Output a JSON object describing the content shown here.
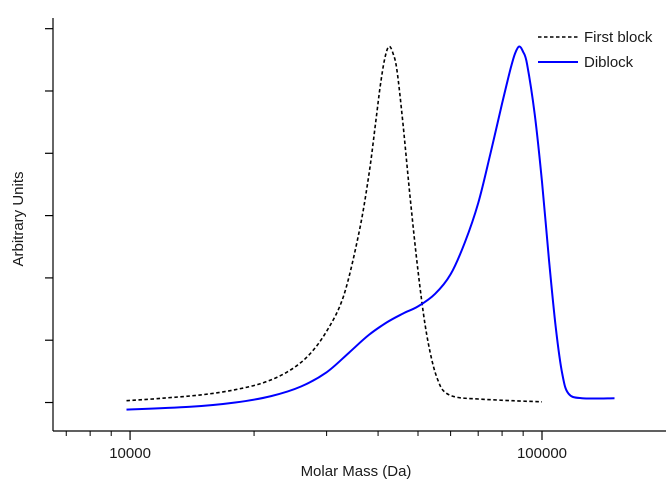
{
  "chart_data": {
    "type": "line",
    "title": "",
    "xlabel": "Molar Mass (Da)",
    "ylabel": "Arbitrary Units",
    "xscale": "log",
    "xlim": [
      6500,
      200000
    ],
    "ylim": [
      -0.08,
      1.08
    ],
    "x_ticks": [
      10000,
      100000
    ],
    "x_tick_labels": [
      "10000",
      "100000"
    ],
    "y_tick_labels_shown": false,
    "grid": false,
    "legend_position": "top-right",
    "series": [
      {
        "name": "First block",
        "style": "dashed",
        "color": "#000000",
        "points": [
          [
            9800,
            0.005
          ],
          [
            12000,
            0.012
          ],
          [
            15000,
            0.022
          ],
          [
            18000,
            0.036
          ],
          [
            21000,
            0.055
          ],
          [
            24000,
            0.085
          ],
          [
            27000,
            0.13
          ],
          [
            30000,
            0.2
          ],
          [
            33000,
            0.3
          ],
          [
            36000,
            0.48
          ],
          [
            38000,
            0.64
          ],
          [
            39500,
            0.79
          ],
          [
            40500,
            0.89
          ],
          [
            41500,
            0.965
          ],
          [
            42500,
            1.0
          ],
          [
            43500,
            0.98
          ],
          [
            44500,
            0.93
          ],
          [
            46000,
            0.78
          ],
          [
            48000,
            0.56
          ],
          [
            50000,
            0.37
          ],
          [
            52000,
            0.22
          ],
          [
            54000,
            0.12
          ],
          [
            56000,
            0.06
          ],
          [
            58000,
            0.03
          ],
          [
            62000,
            0.015
          ],
          [
            70000,
            0.01
          ],
          [
            85000,
            0.005
          ],
          [
            100000,
            0.002
          ]
        ]
      },
      {
        "name": "Diblock",
        "style": "solid",
        "color": "#0000ff",
        "points": [
          [
            9800,
            -0.02
          ],
          [
            14000,
            -0.012
          ],
          [
            18000,
            0.0
          ],
          [
            22000,
            0.018
          ],
          [
            26000,
            0.045
          ],
          [
            30000,
            0.085
          ],
          [
            34000,
            0.14
          ],
          [
            38000,
            0.19
          ],
          [
            42000,
            0.225
          ],
          [
            46000,
            0.25
          ],
          [
            50000,
            0.27
          ],
          [
            55000,
            0.305
          ],
          [
            60000,
            0.36
          ],
          [
            65000,
            0.45
          ],
          [
            70000,
            0.56
          ],
          [
            75000,
            0.7
          ],
          [
            80000,
            0.84
          ],
          [
            84000,
            0.94
          ],
          [
            86000,
            0.98
          ],
          [
            88000,
            1.0
          ],
          [
            90000,
            0.985
          ],
          [
            92000,
            0.95
          ],
          [
            96000,
            0.81
          ],
          [
            100000,
            0.62
          ],
          [
            104000,
            0.4
          ],
          [
            108000,
            0.21
          ],
          [
            112000,
            0.08
          ],
          [
            116000,
            0.025
          ],
          [
            125000,
            0.012
          ],
          [
            150000,
            0.012
          ]
        ]
      }
    ]
  }
}
